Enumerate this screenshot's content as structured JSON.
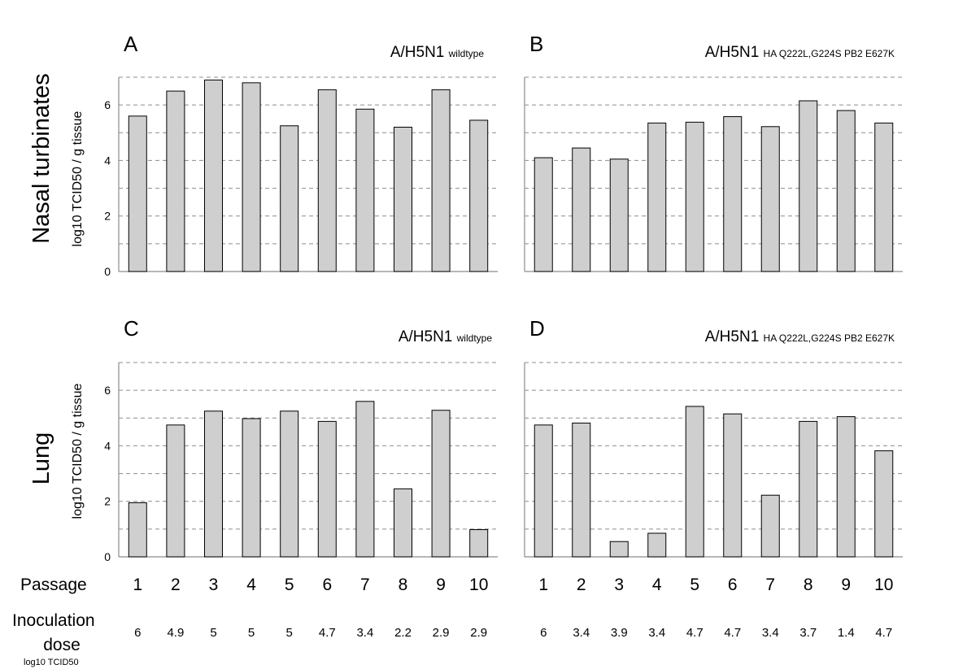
{
  "row_labels": [
    "Nasal turbinates",
    "Lung"
  ],
  "y_label": "log10 TCID50 / g tissue",
  "passage_label": "Passage",
  "dose_label_line1": "Inoculation",
  "dose_label_line2": "dose",
  "dose_unit": "log10 TCID50",
  "passages": [
    "1",
    "2",
    "3",
    "4",
    "5",
    "6",
    "7",
    "8",
    "9",
    "10"
  ],
  "doses": {
    "left": [
      "6",
      "4.9",
      "5",
      "5",
      "5",
      "4.7",
      "3.4",
      "2.2",
      "2.9",
      "2.9"
    ],
    "right": [
      "6",
      "3.4",
      "3.9",
      "3.4",
      "4.7",
      "4.7",
      "3.4",
      "3.7",
      "1.4",
      "4.7"
    ]
  },
  "colors": {
    "bar_fill": "#cfcfcf",
    "bar_stroke": "#000000",
    "grid": "#8c8c8c"
  },
  "chart_data": [
    {
      "type": "bar",
      "panel": "A",
      "title": "A/H5N1",
      "title_sub": "wildtype",
      "categories": [
        "1",
        "2",
        "3",
        "4",
        "5",
        "6",
        "7",
        "8",
        "9",
        "10"
      ],
      "values": [
        5.6,
        6.5,
        6.9,
        6.8,
        5.25,
        6.55,
        5.85,
        5.2,
        6.55,
        5.45
      ],
      "ylim": [
        0,
        7
      ],
      "yticks": [
        0,
        2,
        4,
        6
      ],
      "grid": true
    },
    {
      "type": "bar",
      "panel": "B",
      "title": "A/H5N1",
      "title_sub": "HA Q222L,G224S PB2 E627K",
      "categories": [
        "1",
        "2",
        "3",
        "4",
        "5",
        "6",
        "7",
        "8",
        "9",
        "10"
      ],
      "values": [
        4.1,
        4.45,
        4.05,
        5.35,
        5.38,
        5.58,
        5.22,
        6.15,
        5.8,
        5.35
      ],
      "ylim": [
        0,
        7
      ],
      "yticks": [
        0,
        2,
        4,
        6
      ],
      "grid": true
    },
    {
      "type": "bar",
      "panel": "C",
      "title": "A/H5N1",
      "title_sub": "wildtype",
      "categories": [
        "1",
        "2",
        "3",
        "4",
        "5",
        "6",
        "7",
        "8",
        "9",
        "10"
      ],
      "values": [
        1.95,
        4.75,
        5.25,
        4.98,
        5.25,
        4.88,
        5.6,
        2.45,
        5.28,
        0.98
      ],
      "ylim": [
        0,
        7
      ],
      "yticks": [
        0,
        2,
        4,
        6
      ],
      "grid": true
    },
    {
      "type": "bar",
      "panel": "D",
      "title": "A/H5N1",
      "title_sub": "HA Q222L,G224S PB2 E627K",
      "categories": [
        "1",
        "2",
        "3",
        "4",
        "5",
        "6",
        "7",
        "8",
        "9",
        "10"
      ],
      "values": [
        4.75,
        4.82,
        0.55,
        0.85,
        5.42,
        5.15,
        2.22,
        4.88,
        5.05,
        3.82
      ],
      "ylim": [
        0,
        7
      ],
      "yticks": [
        0,
        2,
        4,
        6
      ],
      "grid": true
    }
  ]
}
